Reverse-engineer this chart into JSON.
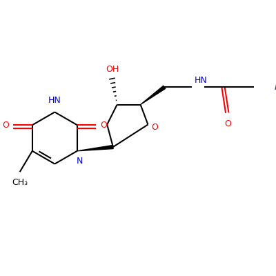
{
  "background_color": "#ffffff",
  "figsize": [
    4.0,
    4.0
  ],
  "dpi": 100,
  "bond_color": "#000000",
  "red": "#ff0000",
  "blue": "#0000cd",
  "purple": "#7b00b2",
  "lw": 1.5,
  "xlim": [
    -0.5,
    4.5
  ],
  "ylim": [
    -1.8,
    2.2
  ]
}
